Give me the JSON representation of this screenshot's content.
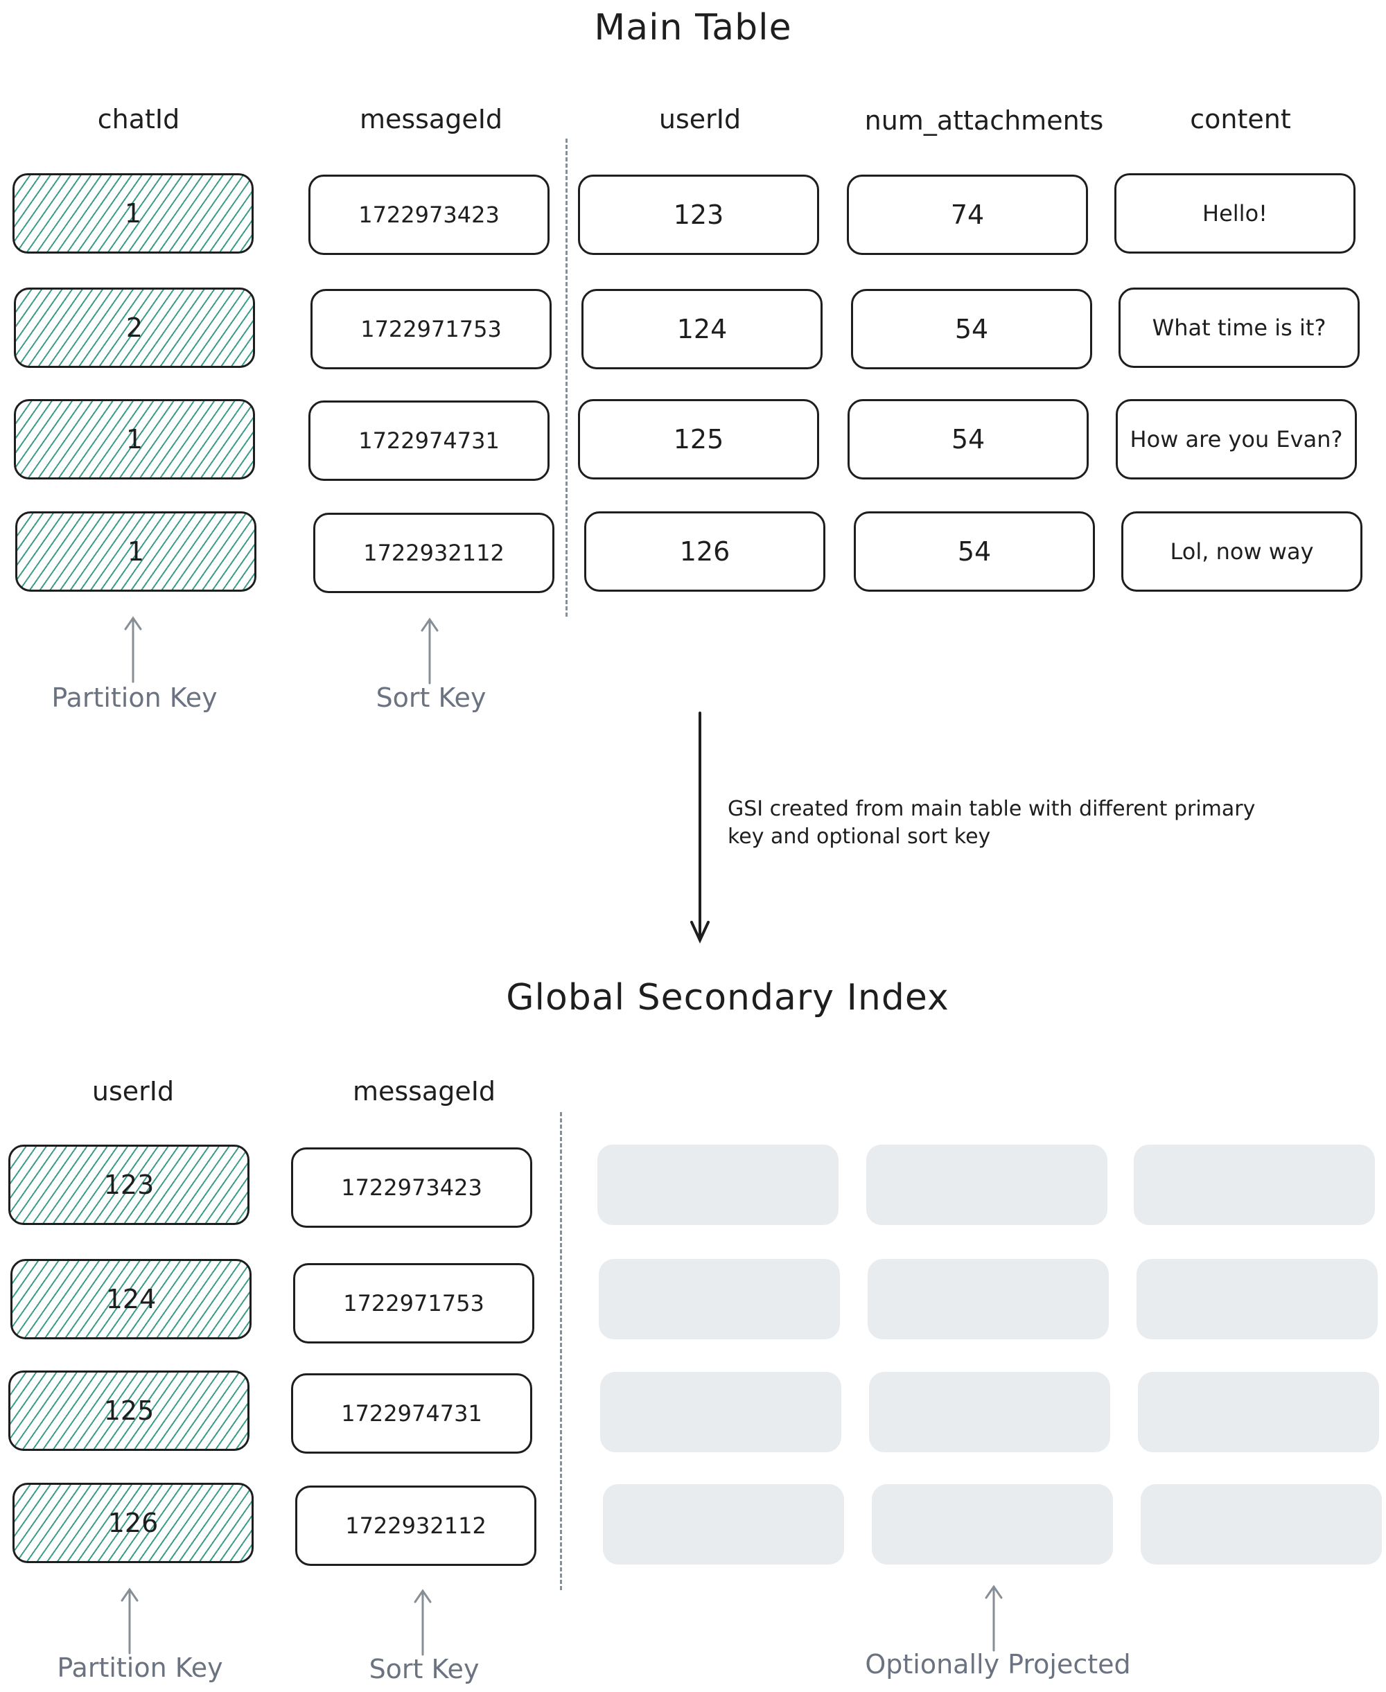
{
  "main_table": {
    "title": "Main Table",
    "headers": [
      "chatId",
      "messageId",
      "userId",
      "num_attachments",
      "content"
    ],
    "rows": [
      [
        "1",
        "1722973423",
        "123",
        "74",
        "Hello!"
      ],
      [
        "2",
        "1722971753",
        "124",
        "54",
        "What time is it?"
      ],
      [
        "1",
        "1722974731",
        "125",
        "54",
        "How are you Evan?"
      ],
      [
        "1",
        "1722932112",
        "126",
        "54",
        "Lol, now way"
      ]
    ],
    "partition_key_label": "Partition Key",
    "sort_key_label": "Sort Key"
  },
  "transition": {
    "note_line1": "GSI created from main table with different primary",
    "note_line2": "key and optional sort key"
  },
  "gsi": {
    "title": "Global Secondary Index",
    "headers": [
      "userId",
      "messageId"
    ],
    "rows": [
      [
        "123",
        "1722973423"
      ],
      [
        "124",
        "1722971753"
      ],
      [
        "125",
        "1722974731"
      ],
      [
        "126",
        "1722932112"
      ]
    ],
    "partition_key_label": "Partition Key",
    "sort_key_label": "Sort Key",
    "projected_label": "Optionally Projected"
  },
  "colors": {
    "key_hatch": "#3c9c8a",
    "ghost": "#e9ecef",
    "label": "#6b7280"
  }
}
